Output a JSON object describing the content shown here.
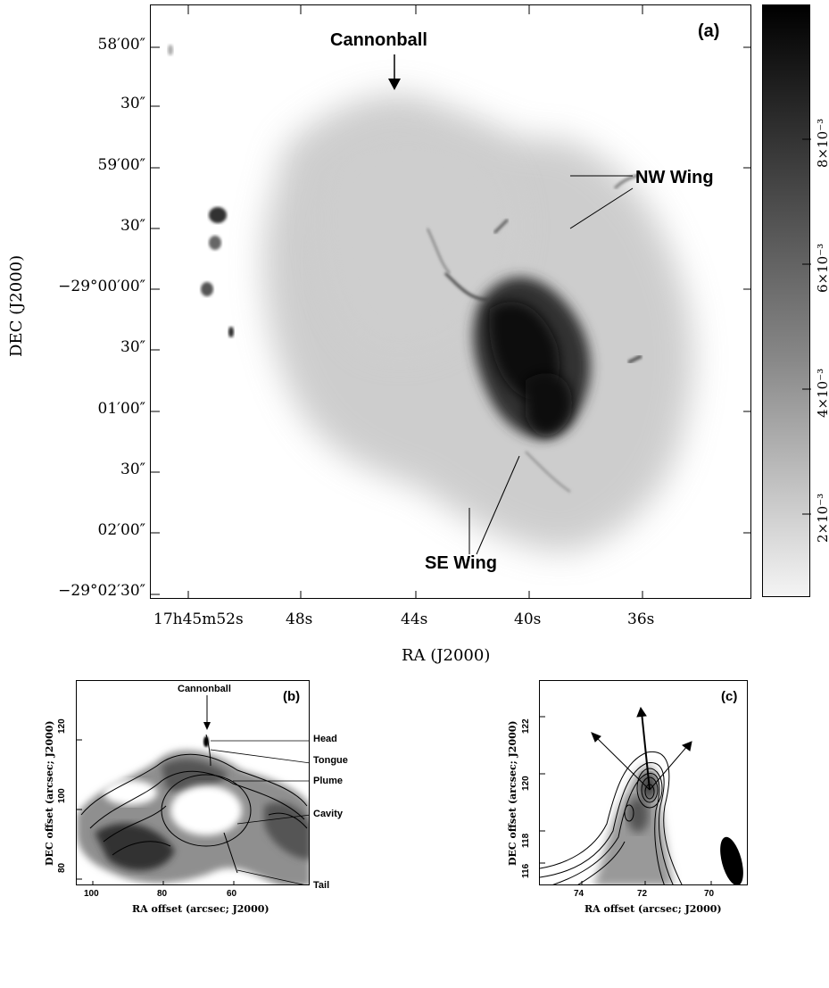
{
  "panel_a": {
    "label": "(a)",
    "annotations": {
      "cannonball": "Cannonball",
      "nw_wing": "NW Wing",
      "se_wing": "SE Wing"
    },
    "dec_ticks": [
      "58′00″",
      "30″",
      "59′00″",
      "30″",
      "−29°00′00″",
      "30″",
      "01′00″",
      "30″",
      "02′00″",
      "−29°02′30″"
    ],
    "ra_ticks": [
      "17h45m52s",
      "48s",
      "44s",
      "40s",
      "36s"
    ],
    "x_axis_label": "RA (J2000)",
    "y_axis_label": "DEC (J2000)",
    "colorbar_ticks": [
      "8×10⁻³",
      "6×10⁻³",
      "4×10⁻³",
      "2×10⁻³"
    ]
  },
  "panel_b": {
    "label": "(b)",
    "annotations": {
      "cannonball": "Cannonball",
      "head": "Head",
      "tongue": "Tongue",
      "plume": "Plume",
      "cavity": "Cavity",
      "tail": "Tail"
    },
    "x_ticks": [
      "100",
      "80",
      "60"
    ],
    "y_ticks": [
      "120",
      "100",
      "80"
    ],
    "x_axis_label": "RA offset (arcsec; J2000)",
    "y_axis_label": "DEC offset (arcsec; J2000)"
  },
  "panel_c": {
    "label": "(c)",
    "x_ticks": [
      "74",
      "72",
      "70"
    ],
    "y_ticks": [
      "122",
      "120",
      "118",
      "116"
    ],
    "x_axis_label": "RA offset (arcsec; J2000)",
    "y_axis_label": "DEC offset (arcsec; J2000)"
  }
}
